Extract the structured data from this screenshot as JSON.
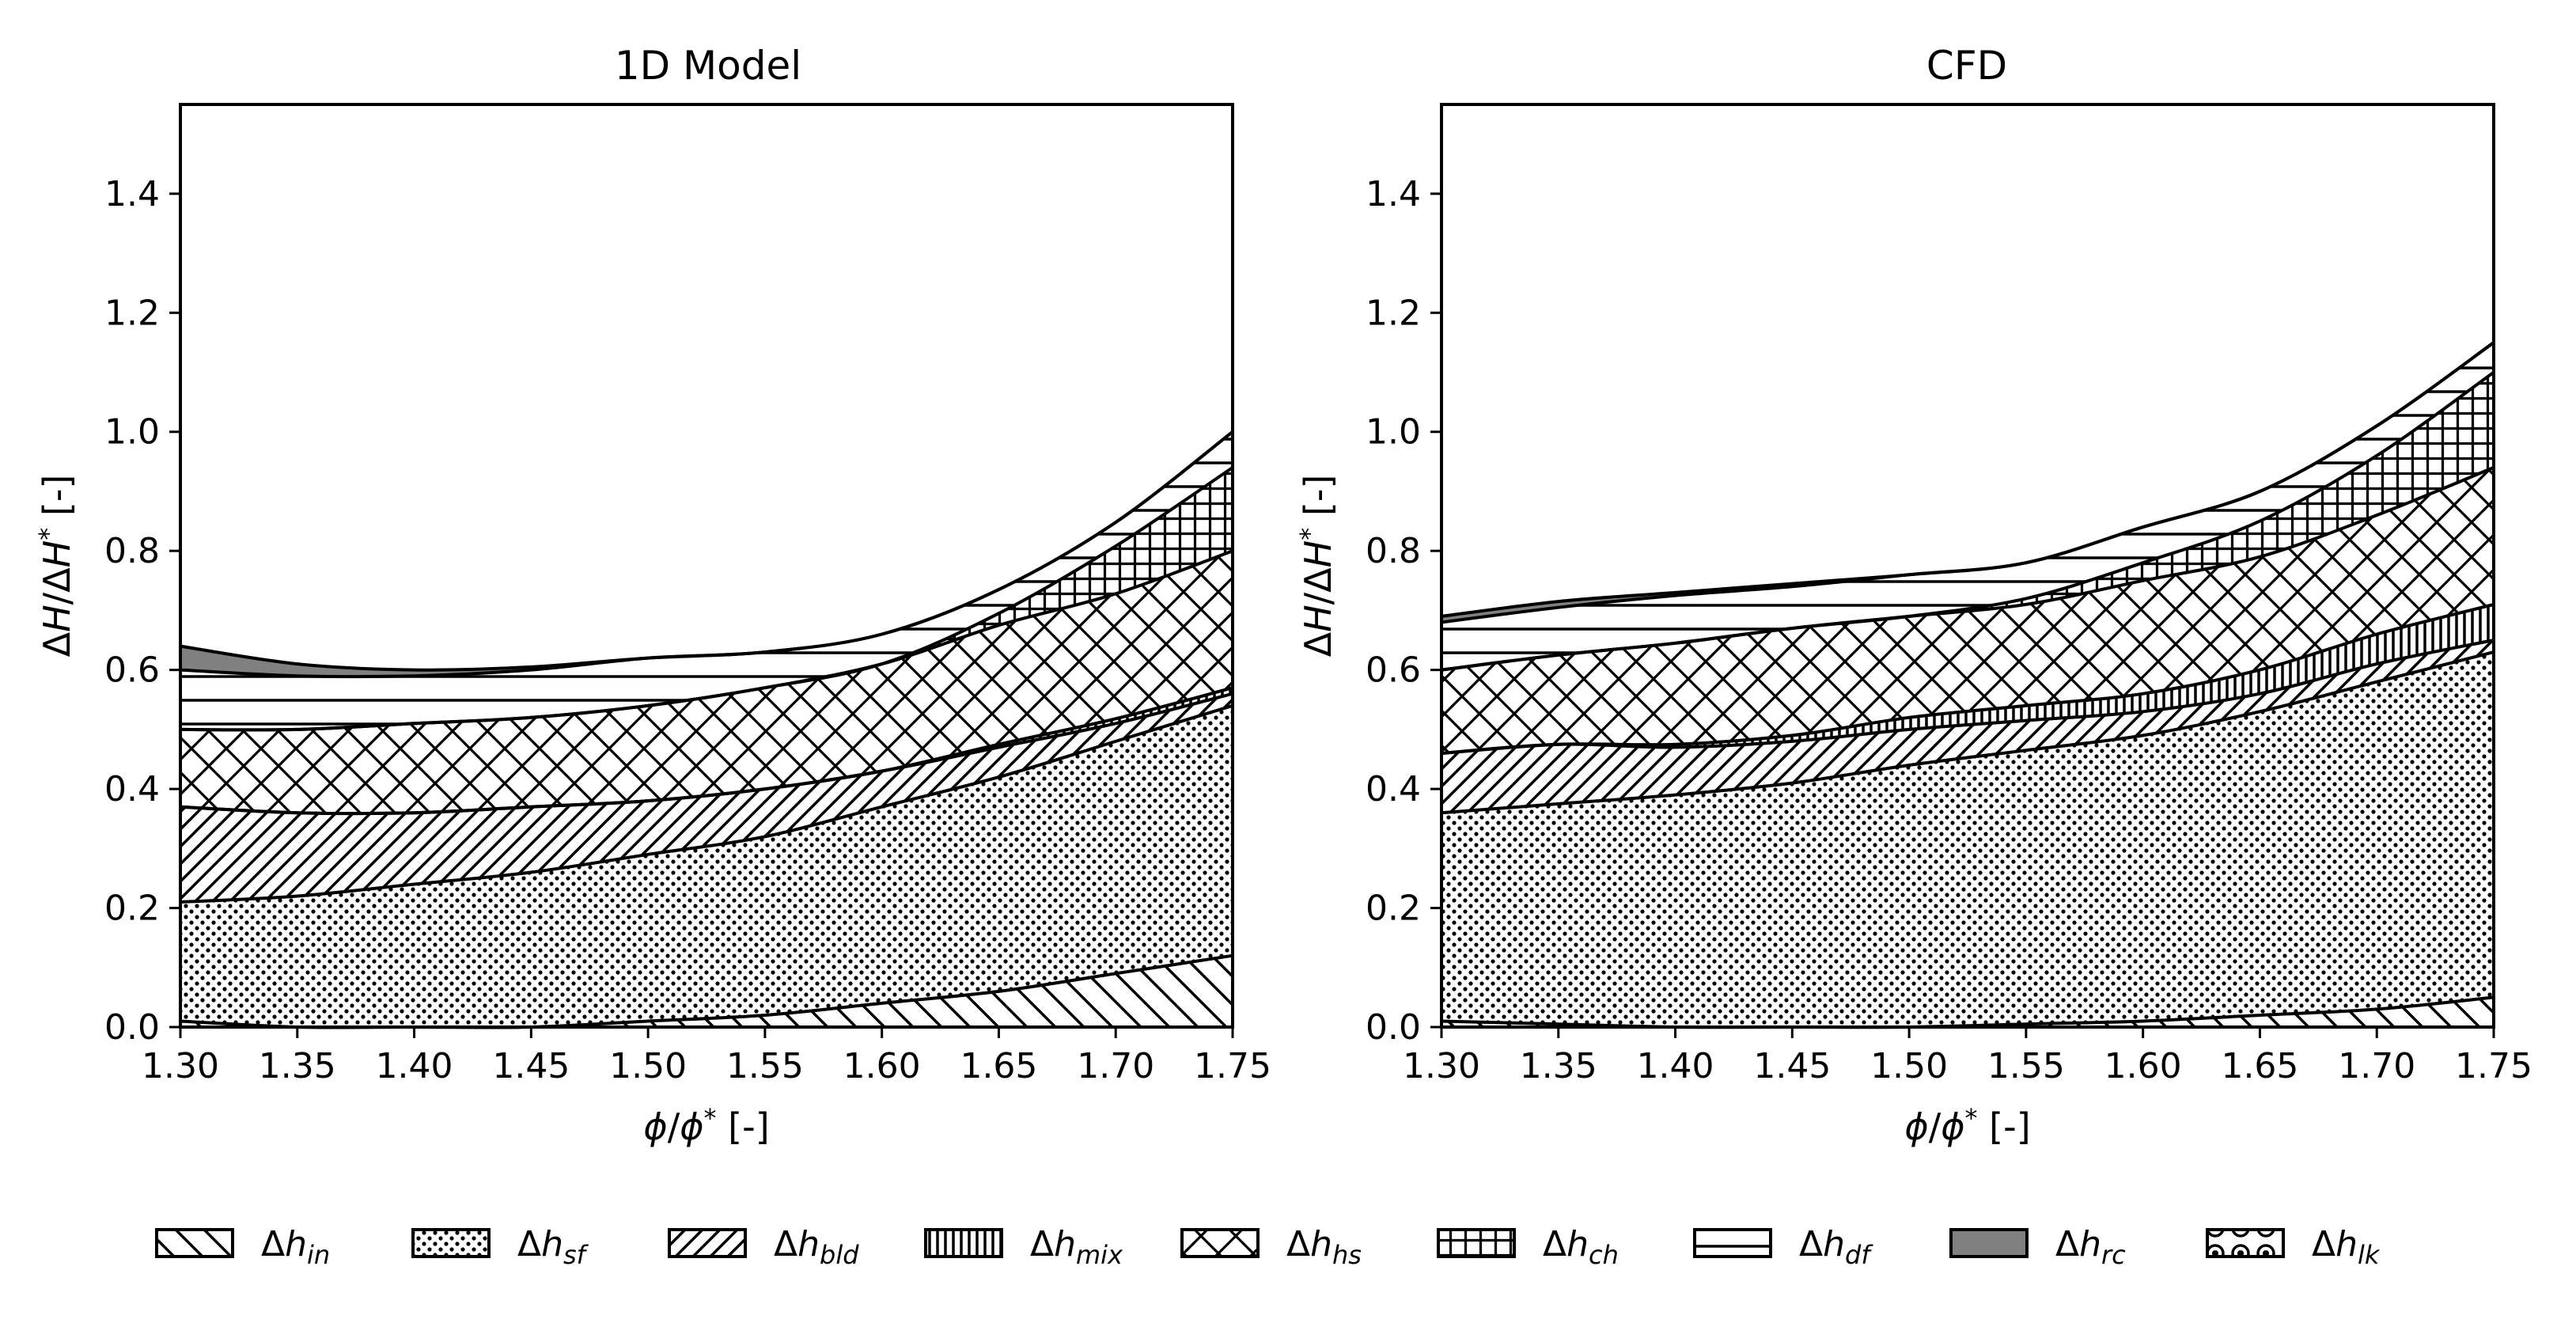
{
  "chart_data": [
    {
      "type": "area",
      "stacked": true,
      "title": "1D Model",
      "xlabel": "ϕ/ϕ* [-]",
      "ylabel": "ΔH/ΔH* [-]",
      "xlim": [
        1.3,
        1.75
      ],
      "ylim": [
        0.0,
        1.55
      ],
      "xticks": [
        "1.30",
        "1.35",
        "1.40",
        "1.45",
        "1.50",
        "1.55",
        "1.60",
        "1.65",
        "1.70",
        "1.75"
      ],
      "yticks": [
        "0.0",
        "0.2",
        "0.4",
        "0.6",
        "0.8",
        "1.0",
        "1.2",
        "1.4"
      ],
      "x": [
        1.3,
        1.35,
        1.4,
        1.45,
        1.5,
        1.55,
        1.6,
        1.65,
        1.7,
        1.75
      ],
      "series": [
        {
          "name": "in",
          "values": [
            0.01,
            0.0,
            0.0,
            0.0,
            0.01,
            0.02,
            0.04,
            0.06,
            0.09,
            0.12
          ]
        },
        {
          "name": "sf",
          "values": [
            0.2,
            0.22,
            0.24,
            0.26,
            0.28,
            0.3,
            0.33,
            0.36,
            0.39,
            0.42
          ]
        },
        {
          "name": "bld",
          "values": [
            0.16,
            0.14,
            0.12,
            0.11,
            0.09,
            0.08,
            0.06,
            0.05,
            0.03,
            0.02
          ]
        },
        {
          "name": "mix",
          "values": [
            0.0,
            0.0,
            0.0,
            0.0,
            0.0,
            0.0,
            0.0,
            0.005,
            0.008,
            0.01
          ]
        },
        {
          "name": "hs",
          "values": [
            0.13,
            0.14,
            0.15,
            0.15,
            0.16,
            0.17,
            0.18,
            0.2,
            0.21,
            0.23
          ]
        },
        {
          "name": "ch",
          "values": [
            0.0,
            0.0,
            0.0,
            0.0,
            0.0,
            0.0,
            0.0,
            0.02,
            0.08,
            0.14
          ]
        },
        {
          "name": "df",
          "values": [
            0.1,
            0.09,
            0.08,
            0.08,
            0.08,
            0.06,
            0.05,
            0.04,
            0.04,
            0.06
          ]
        },
        {
          "name": "rc",
          "values": [
            0.04,
            0.02,
            0.01,
            0.005,
            0.0,
            0.0,
            0.0,
            0.0,
            0.0,
            0.0
          ]
        },
        {
          "name": "lk",
          "values": [
            0,
            0,
            0,
            0,
            0,
            0,
            0,
            0,
            0,
            0
          ]
        }
      ]
    },
    {
      "type": "area",
      "stacked": true,
      "title": "CFD",
      "xlabel": "ϕ/ϕ* [-]",
      "ylabel": "ΔH/ΔH* [-]",
      "xlim": [
        1.3,
        1.75
      ],
      "ylim": [
        0.0,
        1.55
      ],
      "xticks": [
        "1.30",
        "1.35",
        "1.40",
        "1.45",
        "1.50",
        "1.55",
        "1.60",
        "1.65",
        "1.70",
        "1.75"
      ],
      "yticks": [
        "0.0",
        "0.2",
        "0.4",
        "0.6",
        "0.8",
        "1.0",
        "1.2",
        "1.4"
      ],
      "x": [
        1.3,
        1.35,
        1.4,
        1.45,
        1.5,
        1.55,
        1.6,
        1.65,
        1.7,
        1.75
      ],
      "series": [
        {
          "name": "in",
          "values": [
            0.01,
            0.005,
            0.0,
            0.0,
            0.0,
            0.005,
            0.01,
            0.02,
            0.03,
            0.05
          ]
        },
        {
          "name": "sf",
          "values": [
            0.35,
            0.37,
            0.39,
            0.41,
            0.44,
            0.46,
            0.48,
            0.51,
            0.55,
            0.58
          ]
        },
        {
          "name": "bld",
          "values": [
            0.1,
            0.1,
            0.08,
            0.07,
            0.06,
            0.05,
            0.04,
            0.03,
            0.03,
            0.02
          ]
        },
        {
          "name": "mix",
          "values": [
            0.0,
            0.0,
            0.005,
            0.01,
            0.02,
            0.025,
            0.03,
            0.04,
            0.05,
            0.06
          ]
        },
        {
          "name": "hs",
          "values": [
            0.14,
            0.15,
            0.17,
            0.18,
            0.17,
            0.17,
            0.19,
            0.19,
            0.2,
            0.23
          ]
        },
        {
          "name": "ch",
          "values": [
            0.0,
            0.0,
            0.0,
            0.0,
            0.0,
            0.01,
            0.03,
            0.06,
            0.1,
            0.16
          ]
        },
        {
          "name": "df",
          "values": [
            0.08,
            0.08,
            0.08,
            0.07,
            0.07,
            0.06,
            0.06,
            0.05,
            0.05,
            0.05
          ]
        },
        {
          "name": "rc",
          "values": [
            0.01,
            0.01,
            0.005,
            0.005,
            0.0,
            0.0,
            0.0,
            0.0,
            0.0,
            0.0
          ]
        },
        {
          "name": "lk",
          "values": [
            0,
            0,
            0,
            0,
            0,
            0,
            0,
            0,
            0,
            0
          ]
        }
      ]
    }
  ],
  "legend": {
    "placement": "bottom",
    "entries": [
      {
        "key": "in",
        "symbol": "Δh",
        "subscript": "in",
        "pattern": "diag-back"
      },
      {
        "key": "sf",
        "symbol": "Δh",
        "subscript": "sf",
        "pattern": "dots"
      },
      {
        "key": "bld",
        "symbol": "Δh",
        "subscript": "bld",
        "pattern": "diag-fwd"
      },
      {
        "key": "mix",
        "symbol": "Δh",
        "subscript": "mix",
        "pattern": "vlines"
      },
      {
        "key": "hs",
        "symbol": "Δh",
        "subscript": "hs",
        "pattern": "crosshatch"
      },
      {
        "key": "ch",
        "symbol": "Δh",
        "subscript": "ch",
        "pattern": "grid"
      },
      {
        "key": "df",
        "symbol": "Δh",
        "subscript": "df",
        "pattern": "hlines"
      },
      {
        "key": "rc",
        "symbol": "Δh",
        "subscript": "rc",
        "pattern": "gray"
      },
      {
        "key": "lk",
        "symbol": "Δh",
        "subscript": "lk",
        "pattern": "rings"
      }
    ]
  },
  "colors": {
    "stroke": "#000000",
    "rc_fill": "#808080",
    "background": "#ffffff"
  }
}
